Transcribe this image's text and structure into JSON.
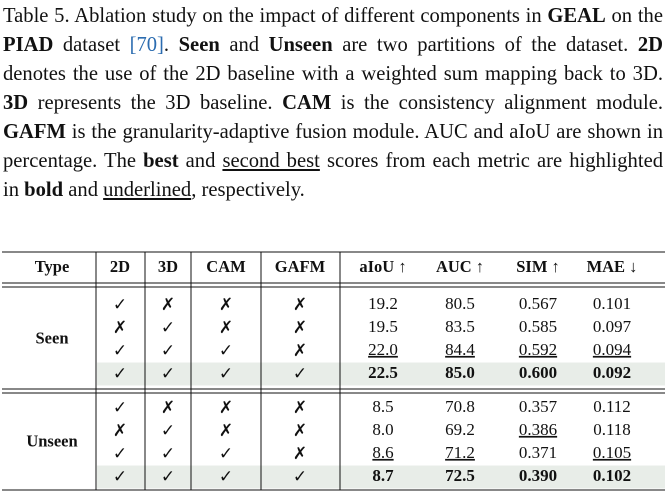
{
  "caption": [
    {
      "text": "Table 5.  Ablation study on the impact of different components in "
    },
    {
      "text": "GEAL",
      "style": "bold"
    },
    {
      "text": " on the "
    },
    {
      "text": "PIAD",
      "style": "bold"
    },
    {
      "text": " dataset "
    },
    {
      "text": "[70]",
      "style": "link"
    },
    {
      "text": ".  "
    },
    {
      "text": "Seen",
      "style": "bold"
    },
    {
      "text": " and "
    },
    {
      "text": "Unseen",
      "style": "bold"
    },
    {
      "text": " are two partitions of the dataset.  "
    },
    {
      "text": "2D",
      "style": "bold"
    },
    {
      "text": " denotes the use of the 2D baseline with a weighted sum mapping back to 3D. "
    },
    {
      "text": "3D",
      "style": "bold"
    },
    {
      "text": " represents the 3D baseline.  "
    },
    {
      "text": "CAM",
      "style": "bold"
    },
    {
      "text": " is the consistency alignment module.  "
    },
    {
      "text": "GAFM",
      "style": "bold"
    },
    {
      "text": " is the granularity-adaptive fusion module. AUC and aIoU are shown in percentage.  The "
    },
    {
      "text": "best",
      "style": "bold"
    },
    {
      "text": " and "
    },
    {
      "text": "second best",
      "style": "underline"
    },
    {
      "text": " scores from each metric are highlighted in "
    },
    {
      "text": "bold",
      "style": "bold"
    },
    {
      "text": " and "
    },
    {
      "text": "underlined",
      "style": "underline"
    },
    {
      "text": ", respectively."
    }
  ],
  "table": {
    "header": [
      "Type",
      "2D",
      "3D",
      "CAM",
      "GAFM",
      "aIoU ↑",
      "AUC ↑",
      "SIM ↑",
      "MAE ↓"
    ],
    "groups": [
      {
        "name": "Seen",
        "rows": [
          {
            "cells": [
              "✓",
              "✗",
              "✗",
              "✗",
              "19.2",
              "80.5",
              "0.567",
              "0.101"
            ]
          },
          {
            "cells": [
              "✗",
              "✓",
              "✗",
              "✗",
              "19.5",
              "83.5",
              "0.585",
              "0.097"
            ]
          },
          {
            "cells": [
              "✓",
              "✓",
              "✓",
              "✗",
              {
                "text": "22.0",
                "underline": true
              },
              {
                "text": "84.4",
                "underline": true
              },
              {
                "text": "0.592",
                "underline": true
              },
              {
                "text": "0.094",
                "underline": true
              }
            ]
          },
          {
            "cells": [
              "✓",
              "✓",
              "✓",
              "✓",
              "22.5",
              "85.0",
              "0.600",
              "0.092"
            ],
            "style": "bold",
            "highlight": true
          }
        ]
      },
      {
        "name": "Unseen",
        "rows": [
          {
            "cells": [
              "✓",
              "✗",
              "✗",
              "✗",
              "8.5",
              "70.8",
              "0.357",
              "0.112"
            ]
          },
          {
            "cells": [
              "✗",
              "✓",
              "✗",
              "✗",
              "8.0",
              "69.2",
              {
                "text": "0.386",
                "underline": true
              },
              "0.118"
            ]
          },
          {
            "cells": [
              "✓",
              "✓",
              "✓",
              "✗",
              {
                "text": "8.6",
                "underline": true
              },
              {
                "text": "71.2",
                "underline": true
              },
              "0.371",
              {
                "text": "0.105",
                "underline": true
              }
            ]
          },
          {
            "cells": [
              "✓",
              "✓",
              "✓",
              "✓",
              "8.7",
              "72.5",
              "0.390",
              "0.102"
            ],
            "style": "bold",
            "highlight": true
          }
        ]
      }
    ]
  }
}
